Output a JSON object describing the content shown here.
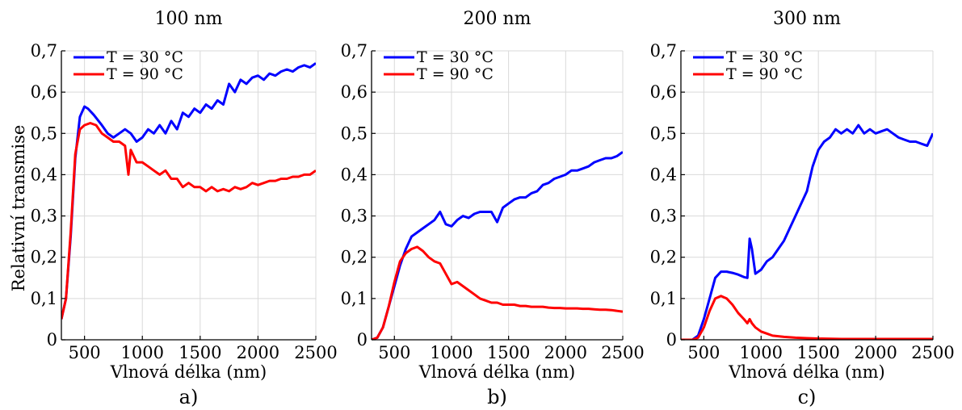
{
  "ylabel": "Relativní transmise",
  "chart_data": [
    {
      "type": "line",
      "title": "100 nm",
      "panel_label": "a)",
      "xlabel": "Vlnová délka (nm)",
      "xlim": [
        300,
        2500
      ],
      "ylim": [
        0,
        0.7
      ],
      "xticks": [
        500,
        1000,
        1500,
        2000,
        2500
      ],
      "xtick_labels": [
        "500",
        "1000",
        "1500",
        "2000",
        "2500"
      ],
      "yticks": [
        0,
        0.1,
        0.2,
        0.3,
        0.4,
        0.5,
        0.6,
        0.7
      ],
      "ytick_labels": [
        "0",
        "0,1",
        "0,2",
        "0,3",
        "0,4",
        "0,5",
        "0,6",
        "0,7"
      ],
      "grid": true,
      "legend_position": "top-left",
      "series": [
        {
          "name": "T = 30 °C",
          "color": "#0000ff",
          "x": [
            300,
            340,
            380,
            420,
            460,
            500,
            530,
            580,
            650,
            700,
            750,
            800,
            850,
            900,
            950,
            1000,
            1050,
            1100,
            1150,
            1200,
            1250,
            1300,
            1350,
            1400,
            1450,
            1500,
            1550,
            1600,
            1650,
            1700,
            1750,
            1800,
            1850,
            1900,
            1950,
            2000,
            2050,
            2100,
            2150,
            2200,
            2250,
            2300,
            2350,
            2400,
            2450,
            2500
          ],
          "y": [
            0.05,
            0.1,
            0.25,
            0.44,
            0.54,
            0.565,
            0.56,
            0.545,
            0.52,
            0.5,
            0.49,
            0.5,
            0.51,
            0.5,
            0.48,
            0.49,
            0.51,
            0.5,
            0.52,
            0.5,
            0.53,
            0.51,
            0.55,
            0.54,
            0.56,
            0.55,
            0.57,
            0.56,
            0.58,
            0.57,
            0.62,
            0.6,
            0.63,
            0.62,
            0.635,
            0.64,
            0.63,
            0.645,
            0.64,
            0.65,
            0.655,
            0.65,
            0.66,
            0.665,
            0.66,
            0.67
          ]
        },
        {
          "name": "T = 90 °C",
          "color": "#ff0000",
          "x": [
            300,
            340,
            380,
            420,
            460,
            500,
            550,
            600,
            650,
            700,
            750,
            800,
            850,
            880,
            900,
            950,
            1000,
            1050,
            1100,
            1150,
            1200,
            1250,
            1300,
            1350,
            1400,
            1450,
            1500,
            1550,
            1600,
            1650,
            1700,
            1750,
            1800,
            1850,
            1900,
            1950,
            2000,
            2050,
            2100,
            2150,
            2200,
            2250,
            2300,
            2350,
            2400,
            2450,
            2500
          ],
          "y": [
            0.05,
            0.1,
            0.26,
            0.45,
            0.51,
            0.52,
            0.525,
            0.52,
            0.5,
            0.49,
            0.48,
            0.48,
            0.47,
            0.4,
            0.46,
            0.43,
            0.43,
            0.42,
            0.41,
            0.4,
            0.41,
            0.39,
            0.39,
            0.37,
            0.38,
            0.37,
            0.37,
            0.36,
            0.37,
            0.36,
            0.365,
            0.36,
            0.37,
            0.365,
            0.37,
            0.38,
            0.375,
            0.38,
            0.385,
            0.385,
            0.39,
            0.39,
            0.395,
            0.395,
            0.4,
            0.4,
            0.41
          ]
        }
      ]
    },
    {
      "type": "line",
      "title": "200 nm",
      "panel_label": "b)",
      "xlabel": "Vlnová délka (nm)",
      "xlim": [
        300,
        2500
      ],
      "ylim": [
        0,
        0.7
      ],
      "xticks": [
        500,
        1000,
        1500,
        2000,
        2500
      ],
      "xtick_labels": [
        "500",
        "1000",
        "1500",
        "2000",
        "2500"
      ],
      "yticks": [
        0,
        0.1,
        0.2,
        0.3,
        0.4,
        0.5,
        0.6,
        0.7
      ],
      "ytick_labels": [
        "0",
        "0,1",
        "0,2",
        "0,3",
        "0,4",
        "0,5",
        "0,6",
        "0,7"
      ],
      "grid": true,
      "legend_position": "top-left",
      "series": [
        {
          "name": "T = 30 °C",
          "color": "#0000ff",
          "x": [
            300,
            350,
            400,
            450,
            500,
            550,
            600,
            650,
            700,
            750,
            800,
            850,
            900,
            950,
            1000,
            1050,
            1100,
            1150,
            1200,
            1250,
            1300,
            1350,
            1400,
            1450,
            1500,
            1550,
            1600,
            1650,
            1700,
            1750,
            1800,
            1850,
            1900,
            1950,
            2000,
            2050,
            2100,
            2150,
            2200,
            2250,
            2300,
            2350,
            2400,
            2450,
            2500
          ],
          "y": [
            0,
            0.005,
            0.03,
            0.08,
            0.13,
            0.18,
            0.22,
            0.25,
            0.26,
            0.27,
            0.28,
            0.29,
            0.31,
            0.28,
            0.275,
            0.29,
            0.3,
            0.295,
            0.305,
            0.31,
            0.31,
            0.31,
            0.285,
            0.32,
            0.33,
            0.34,
            0.345,
            0.345,
            0.355,
            0.36,
            0.375,
            0.38,
            0.39,
            0.395,
            0.4,
            0.41,
            0.41,
            0.415,
            0.42,
            0.43,
            0.435,
            0.44,
            0.44,
            0.445,
            0.455
          ]
        },
        {
          "name": "T = 90 °C",
          "color": "#ff0000",
          "x": [
            300,
            350,
            400,
            450,
            500,
            550,
            600,
            650,
            700,
            750,
            800,
            850,
            900,
            950,
            1000,
            1050,
            1100,
            1150,
            1200,
            1250,
            1300,
            1350,
            1400,
            1450,
            1500,
            1550,
            1600,
            1650,
            1700,
            1750,
            1800,
            1850,
            1900,
            1950,
            2000,
            2050,
            2100,
            2150,
            2200,
            2250,
            2300,
            2350,
            2400,
            2450,
            2500
          ],
          "y": [
            0,
            0.005,
            0.03,
            0.08,
            0.14,
            0.19,
            0.21,
            0.22,
            0.225,
            0.215,
            0.2,
            0.19,
            0.185,
            0.16,
            0.135,
            0.14,
            0.13,
            0.12,
            0.11,
            0.1,
            0.095,
            0.09,
            0.09,
            0.085,
            0.085,
            0.085,
            0.082,
            0.082,
            0.08,
            0.08,
            0.08,
            0.078,
            0.077,
            0.077,
            0.076,
            0.076,
            0.076,
            0.075,
            0.075,
            0.074,
            0.073,
            0.073,
            0.072,
            0.07,
            0.068
          ]
        }
      ]
    },
    {
      "type": "line",
      "title": "300 nm",
      "panel_label": "c)",
      "xlabel": "Vlnová délka (nm)",
      "xlim": [
        300,
        2500
      ],
      "ylim": [
        0,
        0.7
      ],
      "xticks": [
        500,
        1000,
        1500,
        2000,
        2500
      ],
      "xtick_labels": [
        "500",
        "1000",
        "1500",
        "2000",
        "2500"
      ],
      "yticks": [
        0,
        0.1,
        0.2,
        0.3,
        0.4,
        0.5,
        0.6,
        0.7
      ],
      "ytick_labels": [
        "0",
        "0,1",
        "0,2",
        "0,3",
        "0,4",
        "0,5",
        "0,6",
        "0,7"
      ],
      "grid": true,
      "legend_position": "top-left",
      "series": [
        {
          "name": "T = 30 °C",
          "color": "#0000ff",
          "x": [
            300,
            400,
            450,
            500,
            550,
            600,
            650,
            700,
            750,
            800,
            850,
            880,
            900,
            920,
            950,
            1000,
            1050,
            1100,
            1150,
            1200,
            1250,
            1300,
            1350,
            1400,
            1450,
            1500,
            1550,
            1600,
            1650,
            1700,
            1750,
            1800,
            1850,
            1900,
            1950,
            2000,
            2050,
            2100,
            2150,
            2200,
            2250,
            2300,
            2350,
            2400,
            2450,
            2500
          ],
          "y": [
            0,
            0,
            0.01,
            0.05,
            0.1,
            0.15,
            0.165,
            0.165,
            0.162,
            0.158,
            0.152,
            0.15,
            0.245,
            0.22,
            0.16,
            0.17,
            0.19,
            0.2,
            0.22,
            0.24,
            0.27,
            0.3,
            0.33,
            0.36,
            0.42,
            0.46,
            0.48,
            0.49,
            0.51,
            0.5,
            0.51,
            0.5,
            0.52,
            0.5,
            0.51,
            0.5,
            0.505,
            0.51,
            0.5,
            0.49,
            0.485,
            0.48,
            0.48,
            0.475,
            0.47,
            0.5
          ]
        },
        {
          "name": "T = 90 °C",
          "color": "#ff0000",
          "x": [
            300,
            400,
            450,
            500,
            550,
            600,
            650,
            700,
            750,
            800,
            850,
            880,
            900,
            920,
            950,
            1000,
            1050,
            1100,
            1200,
            1300,
            1400,
            1500,
            1700,
            2000,
            2500
          ],
          "y": [
            0,
            0,
            0.005,
            0.03,
            0.07,
            0.1,
            0.106,
            0.1,
            0.085,
            0.065,
            0.05,
            0.04,
            0.05,
            0.04,
            0.03,
            0.02,
            0.015,
            0.01,
            0.007,
            0.005,
            0.004,
            0.003,
            0.002,
            0.002,
            0.002
          ]
        }
      ]
    }
  ]
}
